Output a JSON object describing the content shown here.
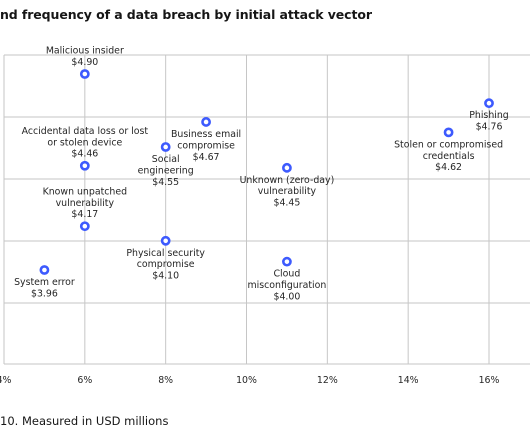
{
  "title_text": "nd frequency of a data breach by initial attack vector",
  "footnote": "10. Measured in USD millions",
  "chart_data": {
    "type": "scatter",
    "title": "nd frequency of a data breach by initial attack vector",
    "x_ticks": [
      "4%",
      "6%",
      "8%",
      "10%",
      "12%",
      "14%",
      "16%"
    ],
    "xlim": [
      4,
      17
    ],
    "ylim": [
      3.7,
      5.1
    ],
    "grid": true,
    "marker_color": "#3d5afe",
    "points": [
      {
        "name": "Malicious insider",
        "x": 6,
        "y": 4.9,
        "label": "$4.90",
        "lines": [
          "Malicious insider",
          "$4.90"
        ],
        "pos": "above"
      },
      {
        "name": "Accidental data loss or lost or stolen device",
        "x": 6,
        "y": 4.46,
        "label": "$4.46",
        "lines": [
          "Accidental data loss or lost",
          "or stolen device",
          "$4.46"
        ],
        "pos": "above"
      },
      {
        "name": "Known unpatched vulnerability",
        "x": 6,
        "y": 4.17,
        "label": "$4.17",
        "lines": [
          "Known unpatched",
          "vulnerability",
          "$4.17"
        ],
        "pos": "above"
      },
      {
        "name": "System error",
        "x": 5,
        "y": 3.96,
        "label": "$3.96",
        "lines": [
          "System error",
          "$3.96"
        ],
        "pos": "below"
      },
      {
        "name": "Social engineering",
        "x": 8,
        "y": 4.55,
        "label": "$4.55",
        "lines": [
          "Social",
          "engineering",
          "$4.55"
        ],
        "pos": "below"
      },
      {
        "name": "Physical security compromise",
        "x": 8,
        "y": 4.1,
        "label": "$4.10",
        "lines": [
          "Physical security",
          "compromise",
          "$4.10"
        ],
        "pos": "below"
      },
      {
        "name": "Business email compromise",
        "x": 9,
        "y": 4.67,
        "label": "$4.67",
        "lines": [
          "Business email",
          "compromise",
          "$4.67"
        ],
        "pos": "below"
      },
      {
        "name": "Unknown (zero-day) vulnerability",
        "x": 11,
        "y": 4.45,
        "label": "$4.45",
        "lines": [
          "Unknown (zero-day)",
          "vulnerability",
          "$4.45"
        ],
        "pos": "below"
      },
      {
        "name": "Cloud misconfiguration",
        "x": 11,
        "y": 4.0,
        "label": "$4.00",
        "lines": [
          "Cloud",
          "misconfiguration",
          "$4.00"
        ],
        "pos": "below"
      },
      {
        "name": "Stolen or compromised credentials",
        "x": 15,
        "y": 4.62,
        "label": "$4.62",
        "lines": [
          "Stolen or compromised",
          "credentials",
          "$4.62"
        ],
        "pos": "below"
      },
      {
        "name": "Phishing",
        "x": 16,
        "y": 4.76,
        "label": "$4.76",
        "lines": [
          "Phishing",
          "$4.76"
        ],
        "pos": "below"
      }
    ]
  }
}
